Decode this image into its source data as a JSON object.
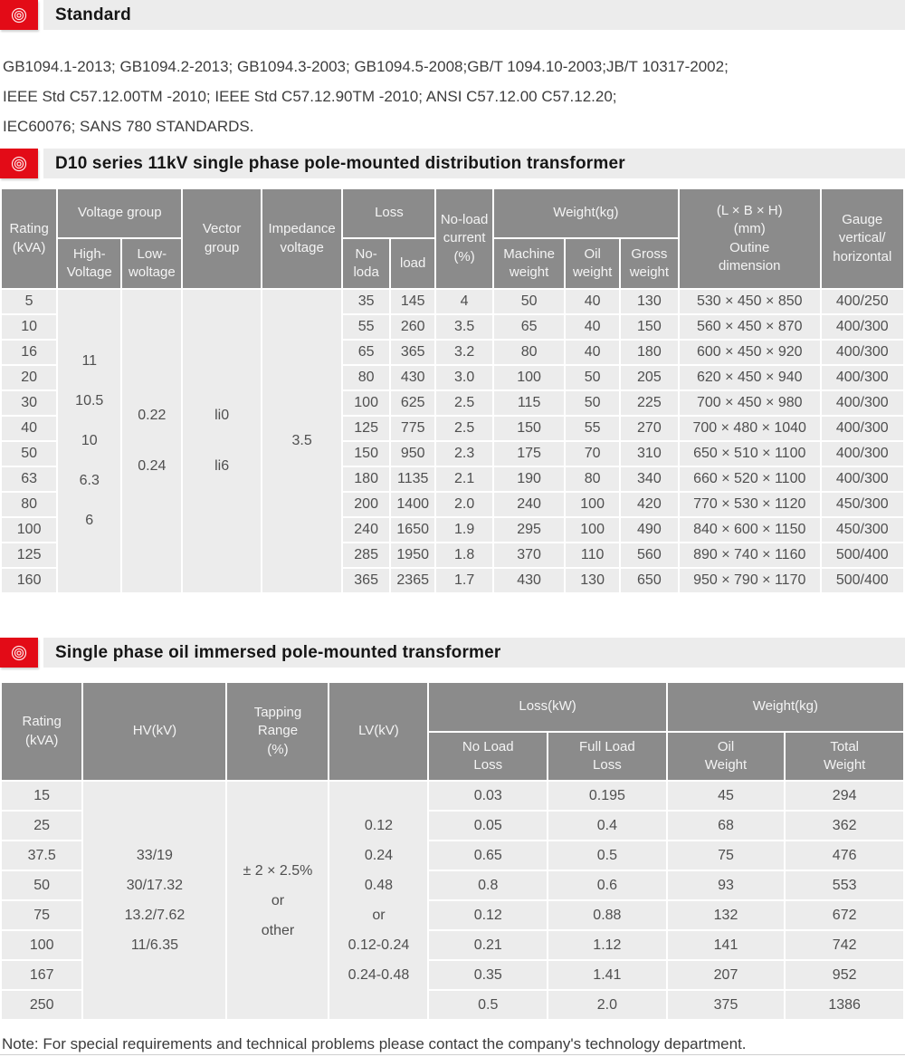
{
  "colors": {
    "accent_red": "#e30b17",
    "section_bar_bg": "#ececec",
    "table_head_bg": "#8b8b8b",
    "table_body_bg": "#ececec",
    "head_text": "#f4f4f4",
    "body_text": "#4f4f4f"
  },
  "sections": {
    "standard": {
      "title": "Standard"
    },
    "d10": {
      "title": "D10 series 11kV single phase pole-mounted distribution transformer"
    },
    "single_phase": {
      "title": "Single phase oil immersed pole-mounted  transformer"
    }
  },
  "standards": {
    "lines": [
      "GB1094.1-2013; GB1094.2-2013; GB1094.3-2003; GB1094.5-2008;GB/T 1094.10-2003;JB/T 10317-2002;",
      "IEEE Std C57.12.00TM -2010; IEEE Std C57.12.90TM -2010; ANSI C57.12.00 C57.12.20;",
      "IEC60076; SANS 780 STANDARDS."
    ]
  },
  "table1": {
    "head": {
      "rating": "Rating\n(kVA)",
      "voltage_group": "Voltage group",
      "high_voltage": "High-\nVoltage",
      "low_voltage": "Low-\nwoltage",
      "vector_group": "Vector\ngroup",
      "impedance_voltage": "Impedance\nvoltage",
      "loss": "Loss",
      "no_load_loss": "No-\nloda",
      "load_loss": "load",
      "no_load_current": "No-load\ncurrent\n(%)",
      "weight": "Weight(kg)",
      "machine_weight": "Machine\nweight",
      "oil_weight": "Oil\nweight",
      "gross_weight": "Gross\nweight",
      "dimension": "(L × B × H)\n(mm)\nOutine\ndimension",
      "gauge": "Gauge\nvertical/\nhorizontal"
    },
    "merged_insert_after": 1,
    "merged": [
      {
        "name": "high-voltage-values",
        "lines": [
          "11",
          "10.5",
          "10",
          "6.3",
          "6"
        ]
      },
      {
        "name": "low-voltage-values",
        "lines": [
          "0.22",
          "0.24"
        ]
      },
      {
        "name": "vector-group-values",
        "lines": [
          "li0",
          "li6"
        ]
      },
      {
        "name": "impedance-voltage-values",
        "lines": [
          "3.5"
        ]
      }
    ],
    "rows": [
      [
        "5",
        "35",
        "145",
        "4",
        "50",
        "40",
        "130",
        "530 × 450 × 850",
        "400/250"
      ],
      [
        "10",
        "55",
        "260",
        "3.5",
        "65",
        "40",
        "150",
        "560 × 450 × 870",
        "400/300"
      ],
      [
        "16",
        "65",
        "365",
        "3.2",
        "80",
        "40",
        "180",
        "600 × 450 × 920",
        "400/300"
      ],
      [
        "20",
        "80",
        "430",
        "3.0",
        "100",
        "50",
        "205",
        "620 × 450 × 940",
        "400/300"
      ],
      [
        "30",
        "100",
        "625",
        "2.5",
        "115",
        "50",
        "225",
        "700 × 450 × 980",
        "400/300"
      ],
      [
        "40",
        "125",
        "775",
        "2.5",
        "150",
        "55",
        "270",
        "700 × 480 × 1040",
        "400/300"
      ],
      [
        "50",
        "150",
        "950",
        "2.3",
        "175",
        "70",
        "310",
        "650 × 510 × 1100",
        "400/300"
      ],
      [
        "63",
        "180",
        "1135",
        "2.1",
        "190",
        "80",
        "340",
        "660 × 520 × 1100",
        "400/300"
      ],
      [
        "80",
        "200",
        "1400",
        "2.0",
        "240",
        "100",
        "420",
        "770 × 530 × 1120",
        "450/300"
      ],
      [
        "100",
        "240",
        "1650",
        "1.9",
        "295",
        "100",
        "490",
        "840 × 600 × 1150",
        "450/300"
      ],
      [
        "125",
        "285",
        "1950",
        "1.8",
        "370",
        "110",
        "560",
        "890 × 740 × 1160",
        "500/400"
      ],
      [
        "160",
        "365",
        "2365",
        "1.7",
        "430",
        "130",
        "650",
        "950 × 790 × 1170",
        "500/400"
      ]
    ]
  },
  "table2": {
    "head": {
      "rating": "Rating\n(kVA)",
      "hv": "HV(kV)",
      "tapping": "Tapping\nRange\n(%)",
      "lv": "LV(kV)",
      "loss": "Loss(kW)",
      "no_load_loss": "No Load\nLoss",
      "full_load_loss": "Full Load\nLoss",
      "weight": "Weight(kg)",
      "oil_weight": "Oil\nWeight",
      "total_weight": "Total\nWeight"
    },
    "merged_insert_after": 1,
    "merged": [
      {
        "name": "hv-values",
        "lines": [
          "33/19",
          "30/17.32",
          "13.2/7.62",
          "11/6.35"
        ]
      },
      {
        "name": "tapping-range-values",
        "lines": [
          "± 2 × 2.5%",
          "or",
          "other"
        ]
      },
      {
        "name": "lv-values",
        "lines": [
          "0.12",
          "0.24",
          "0.48",
          "or",
          "0.12-0.24",
          "0.24-0.48"
        ]
      }
    ],
    "rows": [
      [
        "15",
        "0.03",
        "0.195",
        "45",
        "294"
      ],
      [
        "25",
        "0.05",
        "0.4",
        "68",
        "362"
      ],
      [
        "37.5",
        "0.65",
        "0.5",
        "75",
        "476"
      ],
      [
        "50",
        "0.8",
        "0.6",
        "93",
        "553"
      ],
      [
        "75",
        "0.12",
        "0.88",
        "132",
        "672"
      ],
      [
        "100",
        "0.21",
        "1.12",
        "141",
        "742"
      ],
      [
        "167",
        "0.35",
        "1.41",
        "207",
        "952"
      ],
      [
        "250",
        "0.5",
        "2.0",
        "375",
        "1386"
      ]
    ]
  },
  "note": "Note: For special requirements and technical problems please contact the company's technology department."
}
